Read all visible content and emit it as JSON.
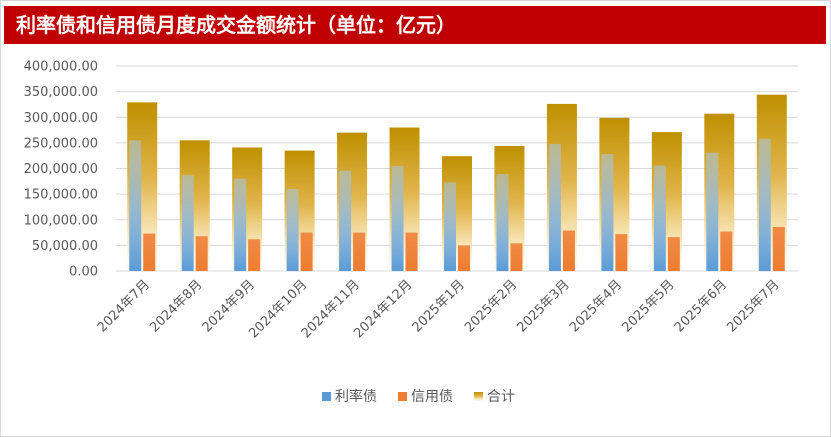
{
  "colors": {
    "title_bg": "#c00000",
    "rate_bond": "#5b9bd5",
    "credit_bond": "#ed7d31",
    "total_top": "#bf9000",
    "total_mid": "#f2d17f",
    "gridline": "#d9d9d9"
  },
  "chart_data": {
    "type": "bar",
    "title": "利率债和信用债月度成交金额统计（单位：亿元）",
    "categories": [
      "2024年7月",
      "2024年8月",
      "2024年9月",
      "2024年10月",
      "2024年11月",
      "2024年12月",
      "2025年1月",
      "2025年2月",
      "2025年3月",
      "2025年4月",
      "2025年5月",
      "2025年6月",
      "2025年7月"
    ],
    "series": [
      {
        "name": "利率债",
        "values": [
          255000,
          187000,
          180000,
          160000,
          196000,
          205000,
          173000,
          189000,
          248000,
          228000,
          206000,
          231000,
          258000
        ]
      },
      {
        "name": "信用债",
        "values": [
          73000,
          68000,
          62000,
          75000,
          75000,
          75000,
          50000,
          54000,
          79000,
          72000,
          66000,
          77000,
          86000
        ]
      },
      {
        "name": "合计",
        "values": [
          329000,
          255000,
          241000,
          235000,
          270000,
          280000,
          224000,
          244000,
          326000,
          299000,
          271000,
          307000,
          344000
        ]
      }
    ],
    "ylim": [
      0,
      400000
    ],
    "yticks": [
      "0.00",
      "50,000.00",
      "100,000.00",
      "150,000.00",
      "200,000.00",
      "250,000.00",
      "300,000.00",
      "350,000.00",
      "400,000.00"
    ],
    "grid": true,
    "legend_position": "bottom"
  }
}
